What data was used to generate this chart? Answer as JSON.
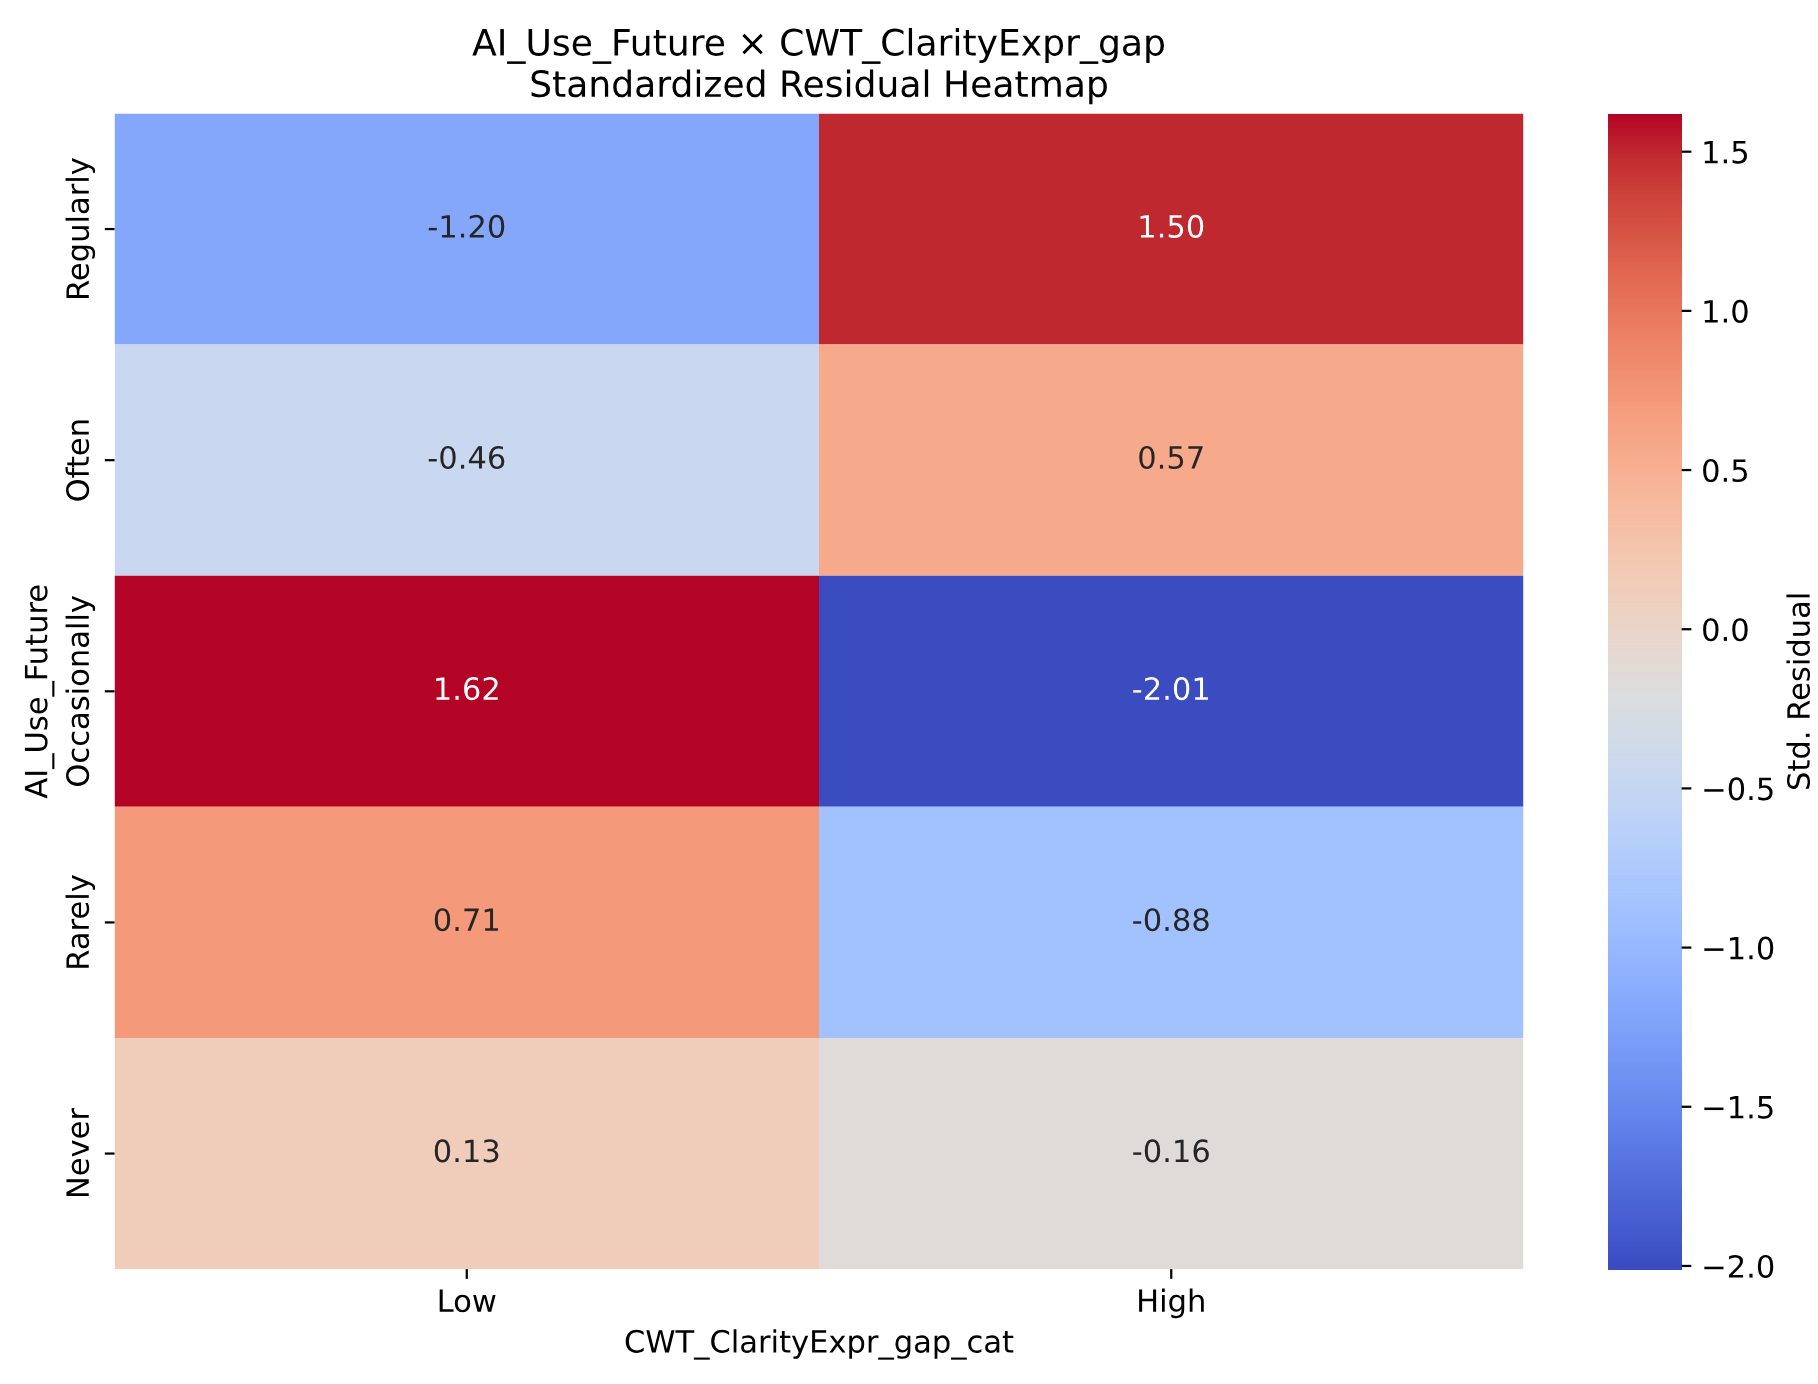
{
  "chart_data": {
    "type": "heatmap",
    "title": "AI_Use_Future × CWT_ClarityExpr_gap\nStandardized Residual Heatmap",
    "xlabel": "CWT_ClarityExpr_gap_cat",
    "ylabel": "AI_Use_Future",
    "clabel": "Std. Residual",
    "categories": [
      "Low",
      "High"
    ],
    "y_categories": [
      "Regularly",
      "Often",
      "Occasionally",
      "Rarely",
      "Never"
    ],
    "cells": [
      [
        -1.2,
        1.5
      ],
      [
        -0.46,
        0.57
      ],
      [
        1.62,
        -2.01
      ],
      [
        0.71,
        -0.88
      ],
      [
        0.13,
        -0.16
      ]
    ],
    "cell_labels": [
      [
        "-1.20",
        "1.50"
      ],
      [
        "-0.46",
        "0.57"
      ],
      [
        "1.62",
        "-2.01"
      ],
      [
        "0.71",
        "-0.88"
      ],
      [
        "0.13",
        "-0.16"
      ]
    ],
    "clim": [
      -2.01,
      1.62
    ],
    "cticks": [
      {
        "value": -2.0,
        "label": "−2.0"
      },
      {
        "value": -1.5,
        "label": "−1.5"
      },
      {
        "value": -1.0,
        "label": "−1.0"
      },
      {
        "value": -0.5,
        "label": "−0.5"
      },
      {
        "value": 0.0,
        "label": "0.0"
      },
      {
        "value": 0.5,
        "label": "0.5"
      },
      {
        "value": 1.0,
        "label": "1.0"
      },
      {
        "value": 1.5,
        "label": "1.5"
      }
    ],
    "grid": false
  }
}
